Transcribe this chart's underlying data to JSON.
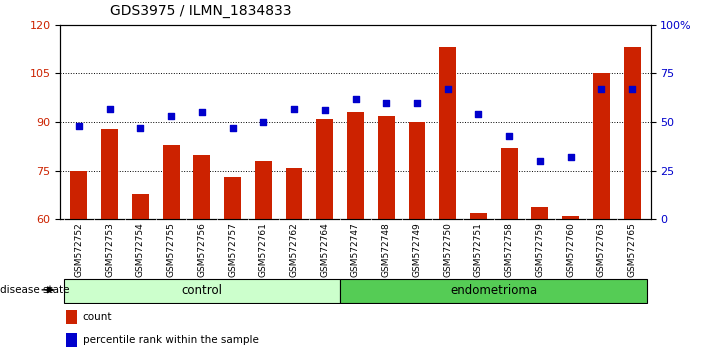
{
  "title": "GDS3975 / ILMN_1834833",
  "samples": [
    "GSM572752",
    "GSM572753",
    "GSM572754",
    "GSM572755",
    "GSM572756",
    "GSM572757",
    "GSM572761",
    "GSM572762",
    "GSM572764",
    "GSM572747",
    "GSM572748",
    "GSM572749",
    "GSM572750",
    "GSM572751",
    "GSM572758",
    "GSM572759",
    "GSM572760",
    "GSM572763",
    "GSM572765"
  ],
  "bar_values": [
    75,
    88,
    68,
    83,
    80,
    73,
    78,
    76,
    91,
    93,
    92,
    90,
    113,
    62,
    82,
    64,
    61,
    105,
    113
  ],
  "dot_values": [
    48,
    57,
    47,
    53,
    55,
    47,
    50,
    57,
    56,
    62,
    60,
    60,
    67,
    54,
    43,
    30,
    32,
    67,
    67
  ],
  "ylim_left": [
    60,
    120
  ],
  "ylim_right": [
    0,
    100
  ],
  "left_ticks": [
    60,
    75,
    90,
    105,
    120
  ],
  "right_ticks": [
    0,
    25,
    50,
    75,
    100
  ],
  "right_tick_labels": [
    "0",
    "25",
    "50",
    "75",
    "100%"
  ],
  "hlines": [
    75,
    90,
    105
  ],
  "control_count": 9,
  "endometrioma_count": 10,
  "bar_color": "#cc2200",
  "dot_color": "#0000cc",
  "control_color": "#ccffcc",
  "endometrioma_color": "#55cc55",
  "gray_color": "#d0d0d0",
  "bar_width": 0.55,
  "xlabel_fontsize": 6.5,
  "title_fontsize": 10
}
